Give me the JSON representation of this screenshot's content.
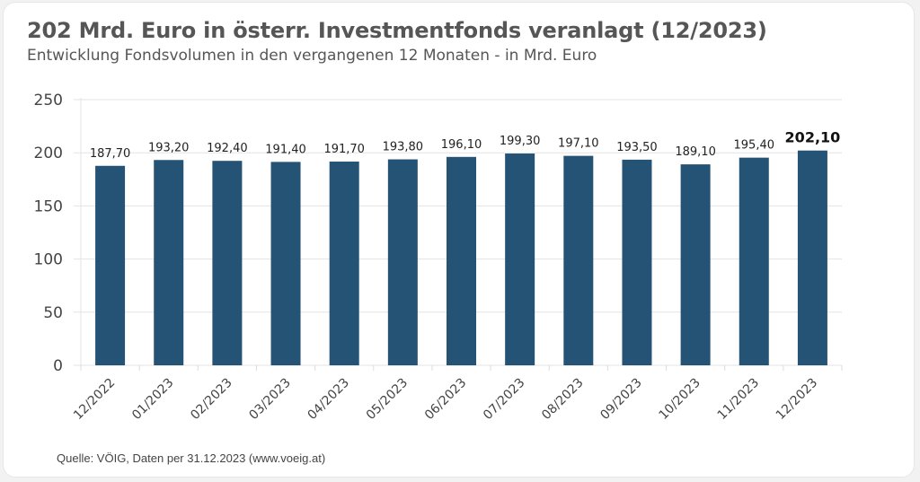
{
  "chart_data": {
    "type": "bar",
    "title": "202 Mrd. Euro in österr. Investmentfonds veranlagt (12/2023)",
    "subtitle": "Entwicklung Fondsvolumen in den vergangenen 12 Monaten - in Mrd. Euro",
    "categories": [
      "12/2022",
      "01/2023",
      "02/2023",
      "03/2023",
      "04/2023",
      "05/2023",
      "06/2023",
      "07/2023",
      "08/2023",
      "09/2023",
      "10/2023",
      "11/2023",
      "12/2023"
    ],
    "values": [
      187.7,
      193.2,
      192.4,
      191.4,
      191.7,
      193.8,
      196.1,
      199.3,
      197.1,
      193.5,
      189.1,
      195.4,
      202.1
    ],
    "data_labels": [
      "187,70",
      "193,20",
      "192,40",
      "191,40",
      "191,70",
      "193,80",
      "196,10",
      "199,30",
      "197,10",
      "193,50",
      "189,10",
      "195,40",
      "202,10"
    ],
    "highlight_index": 12,
    "yticks": [
      0,
      50,
      100,
      150,
      200,
      250
    ],
    "ytick_labels": [
      "0",
      "50",
      "100",
      "150",
      "200",
      "250"
    ],
    "ylim": [
      0,
      250
    ],
    "xlabel": "",
    "ylabel": "",
    "grid": true,
    "bar_color": "#255375",
    "source": "Quelle: VÖIG, Daten per 31.12.2023 (www.voeig.at)"
  }
}
